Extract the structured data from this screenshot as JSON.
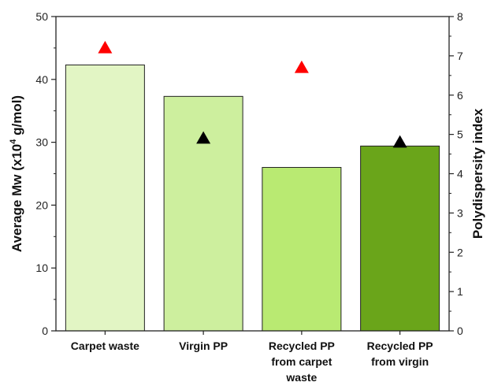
{
  "chart_data": {
    "type": "bar",
    "categories": [
      [
        "Carpet waste"
      ],
      [
        "Virgin PP"
      ],
      [
        "Recycled PP",
        "from carpet",
        "waste"
      ],
      [
        "Recycled PP",
        "from virgin"
      ]
    ],
    "series": [
      {
        "kind": "bar",
        "axis": "left",
        "values": [
          42.3,
          37.3,
          26.0,
          29.4
        ],
        "colors": [
          "#e2f5c4",
          "#cdef9e",
          "#b9ea72",
          "#6aa51a"
        ]
      },
      {
        "kind": "marker",
        "axis": "right",
        "marker": "triangle",
        "values": [
          7.2,
          4.9,
          6.7,
          4.8
        ],
        "colors": [
          "#ff0000",
          "#000000",
          "#ff0000",
          "#000000"
        ]
      }
    ],
    "y_left": {
      "label_prefix": "Average Mw (x10",
      "label_sup": "4",
      "label_suffix": " g/mol)",
      "range": [
        0,
        50
      ],
      "ticks": [
        0,
        10,
        20,
        30,
        40,
        50
      ]
    },
    "y_right": {
      "label": "Polydispersity index",
      "range": [
        0,
        8
      ],
      "ticks": [
        0,
        1,
        2,
        3,
        4,
        5,
        6,
        7,
        8
      ]
    },
    "grid": false,
    "legend": "none"
  }
}
